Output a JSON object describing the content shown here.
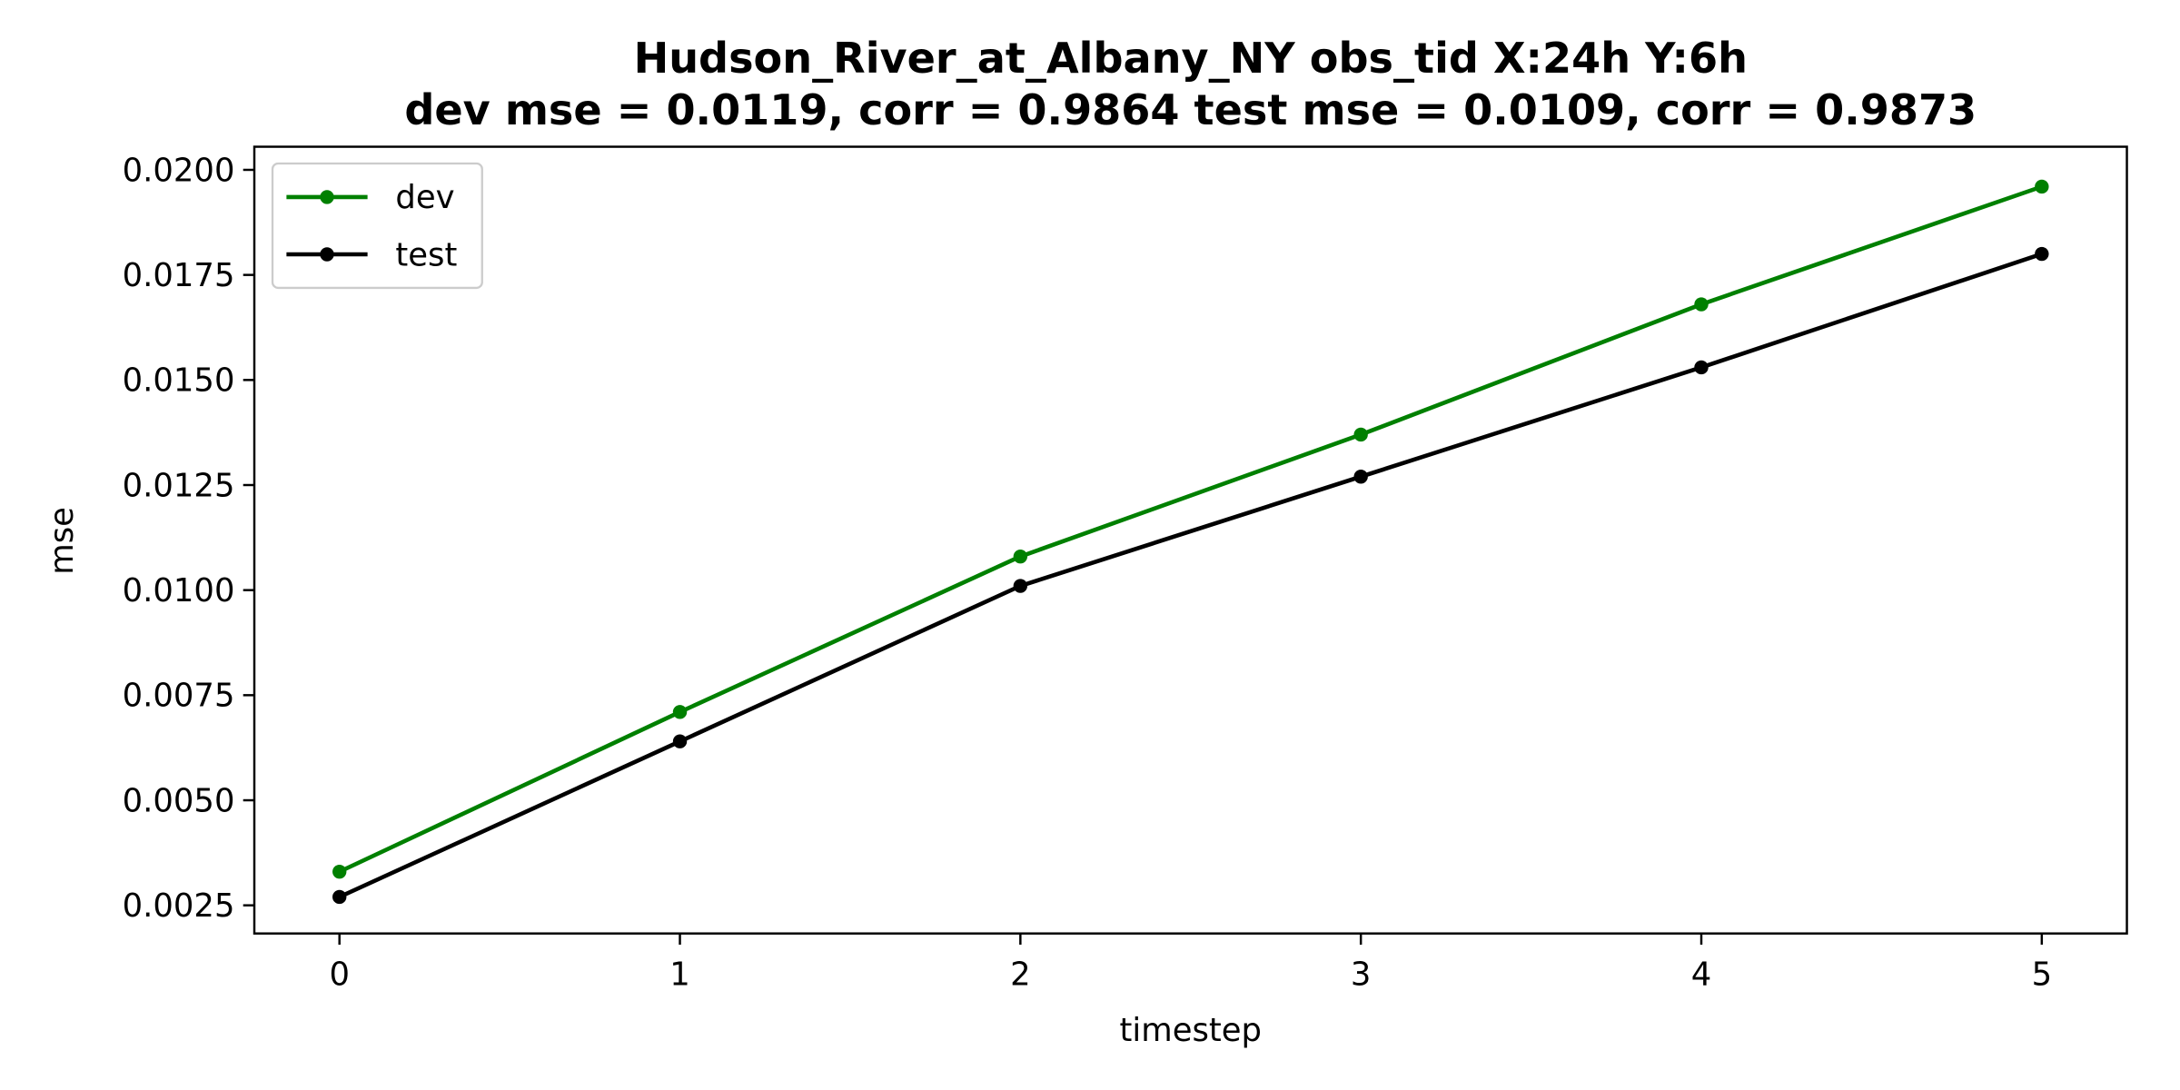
{
  "chart_data": {
    "type": "line",
    "title_line1": "Hudson_River_at_Albany_NY   obs_tid   X:24h   Y:6h",
    "title_line2": "dev mse = 0.0119, corr = 0.9864   test mse = 0.0109, corr = 0.9873",
    "xlabel": "timestep",
    "ylabel": "mse",
    "x": [
      0,
      1,
      2,
      3,
      4,
      5
    ],
    "xlim": [
      -0.25,
      5.25
    ],
    "ylim": [
      0.00183,
      0.02055
    ],
    "xticks": [
      0,
      1,
      2,
      3,
      4,
      5
    ],
    "xtick_labels": [
      "0",
      "1",
      "2",
      "3",
      "4",
      "5"
    ],
    "yticks": [
      0.0025,
      0.005,
      0.0075,
      0.01,
      0.0125,
      0.015,
      0.0175,
      0.02
    ],
    "ytick_labels": [
      "0.0025",
      "0.0050",
      "0.0075",
      "0.0100",
      "0.0125",
      "0.0150",
      "0.0175",
      "0.0200"
    ],
    "grid": false,
    "legend_position": "top-left",
    "series": [
      {
        "name": "dev",
        "color": "#008000",
        "values": [
          0.0033,
          0.0071,
          0.0108,
          0.0137,
          0.0168,
          0.0196
        ]
      },
      {
        "name": "test",
        "color": "#000000",
        "values": [
          0.0027,
          0.0064,
          0.0101,
          0.0127,
          0.0153,
          0.018
        ]
      }
    ]
  }
}
